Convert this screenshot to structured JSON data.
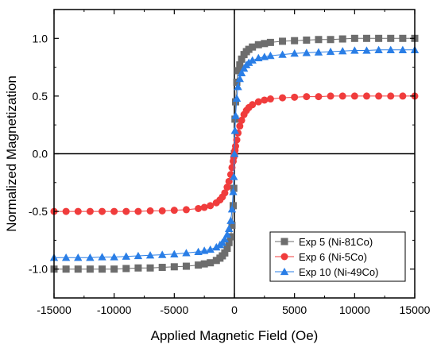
{
  "chart_data": {
    "type": "scatter",
    "xlabel": "Applied Magnetic Field (Oe)",
    "ylabel": "Normalized Magnetization",
    "xlim": [
      -15000,
      15000
    ],
    "ylim": [
      -1.25,
      1.25
    ],
    "xticks": [
      -15000,
      -10000,
      -5000,
      0,
      5000,
      10000,
      15000
    ],
    "xtick_labels": [
      "-15000",
      "-10000",
      "-5000",
      "0",
      "5000",
      "10000",
      "15000"
    ],
    "yticks": [
      -1.0,
      -0.5,
      0.0,
      0.5,
      1.0
    ],
    "ytick_labels": [
      "-1.0",
      "-0.5",
      "0.0",
      "0.5",
      "1.0"
    ],
    "grid": false,
    "zero_lines": true,
    "legend_position": "bottom-right",
    "series": [
      {
        "name": "Exp 5 (Ni-81Co)",
        "marker": "square",
        "color": "#6d6d6d",
        "x": [
          -15000,
          -14000,
          -13000,
          -12000,
          -11000,
          -10000,
          -9000,
          -8000,
          -7000,
          -6000,
          -5000,
          -4000,
          -3000,
          -2500,
          -2000,
          -1500,
          -1200,
          -1000,
          -800,
          -600,
          -450,
          -300,
          -200,
          -100,
          -50,
          0,
          50,
          100,
          200,
          300,
          450,
          600,
          800,
          1000,
          1200,
          1500,
          2000,
          2500,
          3000,
          4000,
          5000,
          6000,
          7000,
          8000,
          9000,
          10000,
          11000,
          12000,
          13000,
          14000,
          15000
        ],
        "y": [
          -1.0,
          -1.0,
          -1.0,
          -1.0,
          -1.0,
          -1.0,
          -0.995,
          -0.99,
          -0.99,
          -0.985,
          -0.98,
          -0.975,
          -0.965,
          -0.955,
          -0.945,
          -0.925,
          -0.905,
          -0.885,
          -0.86,
          -0.82,
          -0.77,
          -0.72,
          -0.62,
          -0.45,
          -0.3,
          0.0,
          0.3,
          0.45,
          0.62,
          0.72,
          0.77,
          0.82,
          0.86,
          0.885,
          0.905,
          0.925,
          0.945,
          0.955,
          0.965,
          0.975,
          0.98,
          0.985,
          0.99,
          0.99,
          0.995,
          1.0,
          1.0,
          1.0,
          1.0,
          1.0,
          1.0
        ]
      },
      {
        "name": "Exp 6 (Ni-5Co)",
        "marker": "circle",
        "color": "#f03c3c",
        "x": [
          -15000,
          -14000,
          -13000,
          -12000,
          -11000,
          -10000,
          -9000,
          -8000,
          -7000,
          -6000,
          -5000,
          -4000,
          -3000,
          -2500,
          -2000,
          -1500,
          -1200,
          -1000,
          -800,
          -600,
          -450,
          -300,
          -200,
          -100,
          -50,
          0,
          50,
          100,
          200,
          300,
          450,
          600,
          800,
          1000,
          1200,
          1500,
          2000,
          2500,
          3000,
          4000,
          5000,
          6000,
          7000,
          8000,
          9000,
          10000,
          11000,
          12000,
          13000,
          14000,
          15000
        ],
        "y": [
          -0.5,
          -0.5,
          -0.5,
          -0.5,
          -0.5,
          -0.5,
          -0.5,
          -0.5,
          -0.495,
          -0.495,
          -0.49,
          -0.485,
          -0.475,
          -0.465,
          -0.45,
          -0.425,
          -0.4,
          -0.375,
          -0.34,
          -0.29,
          -0.24,
          -0.18,
          -0.12,
          -0.065,
          -0.03,
          0.0,
          0.03,
          0.065,
          0.12,
          0.18,
          0.24,
          0.29,
          0.34,
          0.375,
          0.4,
          0.425,
          0.45,
          0.465,
          0.475,
          0.485,
          0.49,
          0.495,
          0.495,
          0.5,
          0.5,
          0.5,
          0.5,
          0.5,
          0.5,
          0.5,
          0.5
        ]
      },
      {
        "name": "Exp 10 (Ni-49Co)",
        "marker": "triangle",
        "color": "#2a7ee6",
        "x": [
          -15000,
          -14000,
          -13000,
          -12000,
          -11000,
          -10000,
          -9000,
          -8000,
          -7000,
          -6000,
          -5000,
          -4000,
          -3000,
          -2500,
          -2000,
          -1500,
          -1200,
          -1000,
          -800,
          -600,
          -450,
          -300,
          -200,
          -100,
          -50,
          0,
          50,
          100,
          200,
          300,
          450,
          600,
          800,
          1000,
          1200,
          1500,
          2000,
          2500,
          3000,
          4000,
          5000,
          6000,
          7000,
          8000,
          9000,
          10000,
          11000,
          12000,
          13000,
          14000,
          15000
        ],
        "y": [
          -0.9,
          -0.9,
          -0.9,
          -0.9,
          -0.895,
          -0.895,
          -0.89,
          -0.885,
          -0.88,
          -0.875,
          -0.87,
          -0.86,
          -0.85,
          -0.84,
          -0.83,
          -0.81,
          -0.79,
          -0.77,
          -0.74,
          -0.7,
          -0.65,
          -0.58,
          -0.48,
          -0.33,
          -0.2,
          0.0,
          0.2,
          0.33,
          0.48,
          0.58,
          0.65,
          0.7,
          0.74,
          0.77,
          0.79,
          0.81,
          0.83,
          0.84,
          0.85,
          0.86,
          0.87,
          0.875,
          0.88,
          0.885,
          0.89,
          0.895,
          0.895,
          0.9,
          0.9,
          0.9,
          0.9
        ]
      }
    ]
  }
}
